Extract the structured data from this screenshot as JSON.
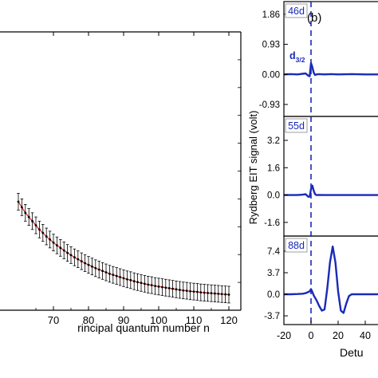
{
  "chart_data": [
    {
      "panel": "a",
      "type": "scatter",
      "title": "",
      "xlabel": "Principal quantum number n",
      "xlabel_visible": "rincipal quantum number n",
      "ylabel": "",
      "xlim": [
        50,
        120
      ],
      "ylim": [
        0,
        1
      ],
      "xticks": [
        "70",
        "80",
        "90",
        "100",
        "110",
        "120"
      ],
      "grid": false,
      "legend": "none",
      "colors": {
        "points": "#000000",
        "fit": "#d62020",
        "errorbars": "#000000"
      },
      "x": [
        60,
        61,
        62,
        63,
        64,
        65,
        66,
        67,
        68,
        69,
        70,
        71,
        72,
        73,
        74,
        75,
        76,
        77,
        78,
        79,
        80,
        81,
        82,
        83,
        84,
        85,
        86,
        87,
        88,
        89,
        90,
        91,
        92,
        93,
        94,
        95,
        96,
        97,
        98,
        99,
        100,
        101,
        102,
        103,
        104,
        105,
        106,
        107,
        108,
        109,
        110,
        111,
        112,
        113,
        114,
        115,
        116,
        117,
        118,
        119,
        120
      ],
      "y": [
        0.39,
        0.37,
        0.35,
        0.335,
        0.32,
        0.305,
        0.29,
        0.278,
        0.265,
        0.254,
        0.243,
        0.233,
        0.224,
        0.215,
        0.206,
        0.198,
        0.19,
        0.183,
        0.176,
        0.169,
        0.163,
        0.157,
        0.151,
        0.146,
        0.141,
        0.136,
        0.131,
        0.127,
        0.123,
        0.119,
        0.115,
        0.111,
        0.108,
        0.104,
        0.101,
        0.098,
        0.095,
        0.092,
        0.09,
        0.087,
        0.085,
        0.083,
        0.081,
        0.079,
        0.077,
        0.075,
        0.073,
        0.071,
        0.07,
        0.068,
        0.067,
        0.066,
        0.064,
        0.063,
        0.062,
        0.061,
        0.06,
        0.059,
        0.058,
        0.057,
        0.056
      ],
      "yerr": 0.03
    },
    {
      "panel": "b",
      "type": "line",
      "label": "(b)",
      "ylabel": "Rydberg EIT signal (volt)",
      "xlabel": "Detuning",
      "xlabel_visible": "Detu",
      "xlim": [
        -20,
        60
      ],
      "xticks": [
        "-20",
        "0",
        "20",
        "40"
      ],
      "annotation": "d3/2",
      "annotation_main": "d",
      "annotation_sub": "3/2",
      "colors": {
        "line": "#1a2ab8",
        "dashed": "#1a2ab8",
        "label_text": "#1a2ab8"
      },
      "subplots": [
        {
          "name": "46d",
          "yticks": [
            "1.86",
            "0.93",
            "0.00",
            "-0.93"
          ],
          "ytick_values": [
            1.86,
            0.93,
            0.0,
            -0.93
          ],
          "ylim": [
            -1.3,
            2.25
          ],
          "x": [
            -20,
            -15,
            -10,
            -6,
            -4,
            -2,
            -1,
            0,
            1,
            2,
            3,
            4,
            6,
            10,
            15,
            20,
            30,
            40,
            50,
            60
          ],
          "y": [
            0.0,
            0.01,
            0.0,
            0.02,
            0.03,
            -0.04,
            -0.06,
            0.35,
            0.22,
            0.05,
            -0.02,
            0.0,
            0.01,
            0.0,
            0.01,
            0.0,
            0.01,
            0.0,
            0.0,
            0.0
          ]
        },
        {
          "name": "55d",
          "yticks": [
            "3.2",
            "1.6",
            "0.0",
            "-1.6"
          ],
          "ytick_values": [
            3.2,
            1.6,
            0.0,
            -1.6
          ],
          "ylim": [
            -2.4,
            4.6
          ],
          "x": [
            -20,
            -15,
            -10,
            -6,
            -4,
            -2,
            -1,
            0,
            1,
            2,
            3,
            4,
            6,
            10,
            15,
            20,
            30,
            40,
            50,
            60
          ],
          "y": [
            0.0,
            0.0,
            0.0,
            0.02,
            0.05,
            -0.1,
            -0.1,
            0.35,
            0.55,
            0.25,
            0.05,
            0.0,
            0.01,
            0.0,
            0.0,
            0.0,
            0.0,
            0.0,
            0.0,
            0.0
          ]
        },
        {
          "name": "88d",
          "yticks": [
            "7.4",
            "3.7",
            "0.0",
            "-3.7"
          ],
          "ytick_values": [
            7.4,
            3.7,
            0.0,
            -3.7
          ],
          "ylim": [
            -5.2,
            10.0
          ],
          "x": [
            -20,
            -15,
            -10,
            -6,
            -4,
            -2,
            -1,
            0,
            1,
            2,
            4,
            6,
            8,
            10,
            12,
            14,
            16,
            18,
            20,
            22,
            24,
            26,
            28,
            30,
            40,
            50,
            60
          ],
          "y": [
            0.0,
            0.0,
            0.05,
            0.1,
            0.2,
            0.4,
            0.5,
            0.9,
            0.4,
            -0.2,
            -1.0,
            -2.0,
            -2.8,
            -2.6,
            1.0,
            5.5,
            8.2,
            5.5,
            0.5,
            -2.8,
            -3.2,
            -1.6,
            -0.3,
            0.0,
            0.0,
            0.0,
            0.0
          ]
        }
      ]
    }
  ]
}
